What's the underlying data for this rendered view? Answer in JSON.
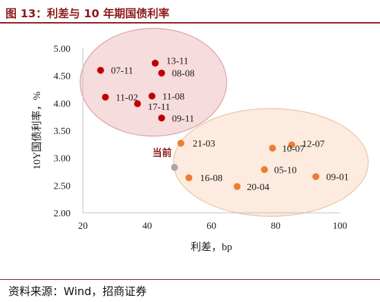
{
  "header": {
    "title": "图 13：利差与 10 年期国债利率"
  },
  "footer": {
    "source": "资料来源：Wind，招商证券"
  },
  "colors": {
    "title": "#8b1a1a",
    "red_points": "#c00000",
    "orange_points": "#ed7d31",
    "current_point": "#a6a6a6",
    "red_ellipse_fill": "#f4d6d6",
    "red_ellipse_stroke": "#d9a3a3",
    "orange_ellipse_fill": "#fbe7d8",
    "orange_ellipse_stroke": "#e8c3a6",
    "current_label": "#8b1a1a"
  },
  "chart_data": {
    "type": "scatter",
    "xlabel": "利差，bp",
    "ylabel": "10Y国债利率，%",
    "xlim": [
      20,
      100
    ],
    "ylim": [
      2.0,
      5.0
    ],
    "xticks": [
      20,
      40,
      60,
      80,
      100
    ],
    "yticks": [
      2.0,
      2.5,
      3.0,
      3.5,
      4.0,
      4.5,
      5.0
    ],
    "ytick_labels": [
      "2.00",
      "2.50",
      "3.00",
      "3.50",
      "4.00",
      "4.50",
      "5.00"
    ],
    "grid": false,
    "groups": [
      {
        "color": "#c00000",
        "points": [
          {
            "label": "07-11",
            "x": 25.5,
            "y": 4.6
          },
          {
            "label": "13-11",
            "x": 42.5,
            "y": 4.73
          },
          {
            "label": "08-08",
            "x": 44.5,
            "y": 4.55
          },
          {
            "label": "11-02",
            "x": 27.0,
            "y": 4.11
          },
          {
            "label": "11-08",
            "x": 41.5,
            "y": 4.13
          },
          {
            "label": "17-11",
            "x": 37.0,
            "y": 3.99
          },
          {
            "label": "09-11",
            "x": 44.5,
            "y": 3.73
          }
        ]
      },
      {
        "color": "#ed7d31",
        "points": [
          {
            "label": "21-03",
            "x": 50.5,
            "y": 3.27
          },
          {
            "label": "12-07",
            "x": 85.0,
            "y": 3.24
          },
          {
            "label": "10-07",
            "x": 79.0,
            "y": 3.18
          },
          {
            "label": "05-10",
            "x": 76.5,
            "y": 2.79
          },
          {
            "label": "16-08",
            "x": 53.0,
            "y": 2.64
          },
          {
            "label": "20-04",
            "x": 68.0,
            "y": 2.48
          },
          {
            "label": "09-01",
            "x": 92.5,
            "y": 2.66
          }
        ]
      }
    ],
    "current": {
      "label": "当前",
      "x": 48.5,
      "y": 2.83
    }
  }
}
